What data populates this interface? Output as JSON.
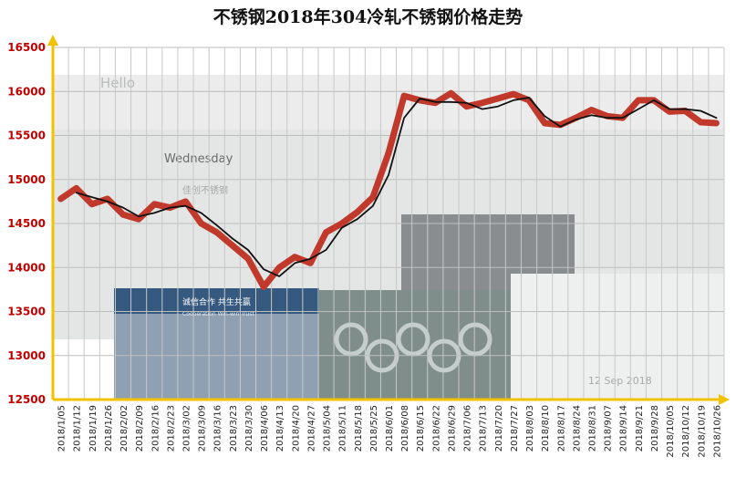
{
  "chart_data": {
    "type": "line",
    "title": "不锈钢2018年304冷轧不锈钢价格走势",
    "xlabel": "",
    "ylabel": "",
    "ylim": [
      12500,
      16500
    ],
    "yticks": [
      12500,
      13000,
      13500,
      14000,
      14500,
      15000,
      15500,
      16000,
      16500
    ],
    "grid": true,
    "legend": "none",
    "categories": [
      "2018/1/05",
      "2018/1/12",
      "2018/1/19",
      "2018/1/26",
      "2018/2/02",
      "2018/2/09",
      "2018/2/16",
      "2018/2/23",
      "2018/3/02",
      "2018/3/09",
      "2018/3/16",
      "2018/3/23",
      "2018/3/30",
      "2018/4/06",
      "2018/4/13",
      "2018/4/20",
      "2018/4/27",
      "2018/5/04",
      "2018/5/11",
      "2018/5/18",
      "2018/5/25",
      "2018/6/01",
      "2018/6/08",
      "2018/6/15",
      "2018/6/22",
      "2018/6/29",
      "2018/7/06",
      "2018/7/13",
      "2018/7/20",
      "2018/7/27",
      "2018/8/03",
      "2018/8/10",
      "2018/8/17",
      "2018/8/24",
      "2018/8/31",
      "2018/9/07",
      "2018/9/14",
      "2018/9/21",
      "2018/9/28",
      "2018/10/05",
      "2018/10/12",
      "2018/10/19",
      "2018/10/26"
    ],
    "series": [
      {
        "color": "#c0392b",
        "values": [
          14780,
          14900,
          14720,
          14780,
          14600,
          14550,
          14720,
          14680,
          14750,
          14500,
          14400,
          14250,
          14100,
          13780,
          14000,
          14120,
          14050,
          14400,
          14500,
          14630,
          14800,
          15300,
          15950,
          15900,
          15870,
          15980,
          15830,
          15870,
          15920,
          15970,
          15900,
          15640,
          15620,
          15700,
          15790,
          15720,
          15700,
          15900,
          15900,
          15770,
          15780,
          15650,
          15640
        ]
      },
      {
        "color": "#111111",
        "values": [
          null,
          14850,
          14800,
          14750,
          14680,
          14580,
          14620,
          14680,
          14700,
          14620,
          14480,
          14330,
          14200,
          13980,
          13900,
          14050,
          14100,
          14200,
          14450,
          14550,
          14700,
          15050,
          15700,
          15920,
          15880,
          15880,
          15870,
          15800,
          15830,
          15900,
          15930,
          15720,
          15600,
          15680,
          15730,
          15700,
          15700,
          15800,
          15900,
          15800,
          15800,
          15780,
          15700
        ]
      }
    ],
    "watermarks": [
      "Hello",
      "Wednesday",
      "佳创不锈钢",
      "诚信合作 共生共赢",
      "Cooperation Win-win Trust",
      "12 Sep 2018"
    ]
  }
}
